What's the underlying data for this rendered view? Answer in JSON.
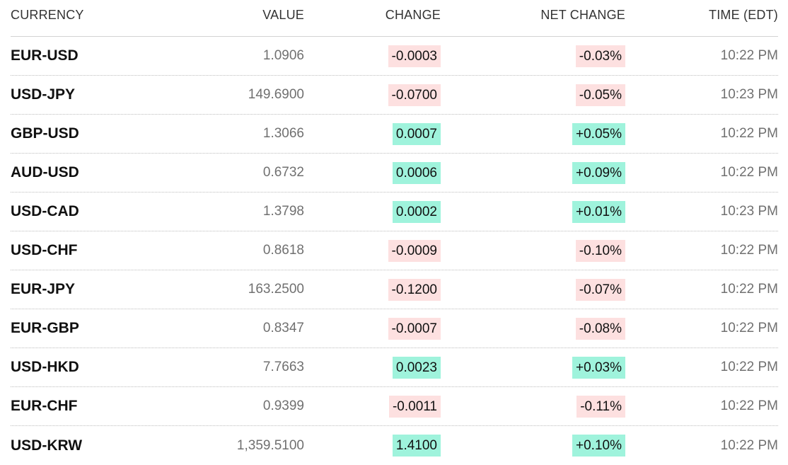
{
  "headers": {
    "currency": "CURRENCY",
    "value": "VALUE",
    "change": "CHANGE",
    "net_change": "NET CHANGE",
    "time": "TIME (EDT)"
  },
  "colors": {
    "negative_bg": "#fde0e0",
    "positive_bg": "#9ff3dc"
  },
  "rows": [
    {
      "pair": "EUR-USD",
      "value": "1.0906",
      "change": "-0.0003",
      "net_change": "-0.03%",
      "time": "10:22 PM",
      "direction": "neg"
    },
    {
      "pair": "USD-JPY",
      "value": "149.6900",
      "change": "-0.0700",
      "net_change": "-0.05%",
      "time": "10:23 PM",
      "direction": "neg"
    },
    {
      "pair": "GBP-USD",
      "value": "1.3066",
      "change": "0.0007",
      "net_change": "+0.05%",
      "time": "10:22 PM",
      "direction": "pos"
    },
    {
      "pair": "AUD-USD",
      "value": "0.6732",
      "change": "0.0006",
      "net_change": "+0.09%",
      "time": "10:22 PM",
      "direction": "pos"
    },
    {
      "pair": "USD-CAD",
      "value": "1.3798",
      "change": "0.0002",
      "net_change": "+0.01%",
      "time": "10:23 PM",
      "direction": "pos"
    },
    {
      "pair": "USD-CHF",
      "value": "0.8618",
      "change": "-0.0009",
      "net_change": "-0.10%",
      "time": "10:22 PM",
      "direction": "neg"
    },
    {
      "pair": "EUR-JPY",
      "value": "163.2500",
      "change": "-0.1200",
      "net_change": "-0.07%",
      "time": "10:22 PM",
      "direction": "neg"
    },
    {
      "pair": "EUR-GBP",
      "value": "0.8347",
      "change": "-0.0007",
      "net_change": "-0.08%",
      "time": "10:22 PM",
      "direction": "neg"
    },
    {
      "pair": "USD-HKD",
      "value": "7.7663",
      "change": "0.0023",
      "net_change": "+0.03%",
      "time": "10:22 PM",
      "direction": "pos"
    },
    {
      "pair": "EUR-CHF",
      "value": "0.9399",
      "change": "-0.0011",
      "net_change": "-0.11%",
      "time": "10:22 PM",
      "direction": "neg"
    },
    {
      "pair": "USD-KRW",
      "value": "1,359.5100",
      "change": "1.4100",
      "net_change": "+0.10%",
      "time": "10:22 PM",
      "direction": "pos"
    }
  ]
}
